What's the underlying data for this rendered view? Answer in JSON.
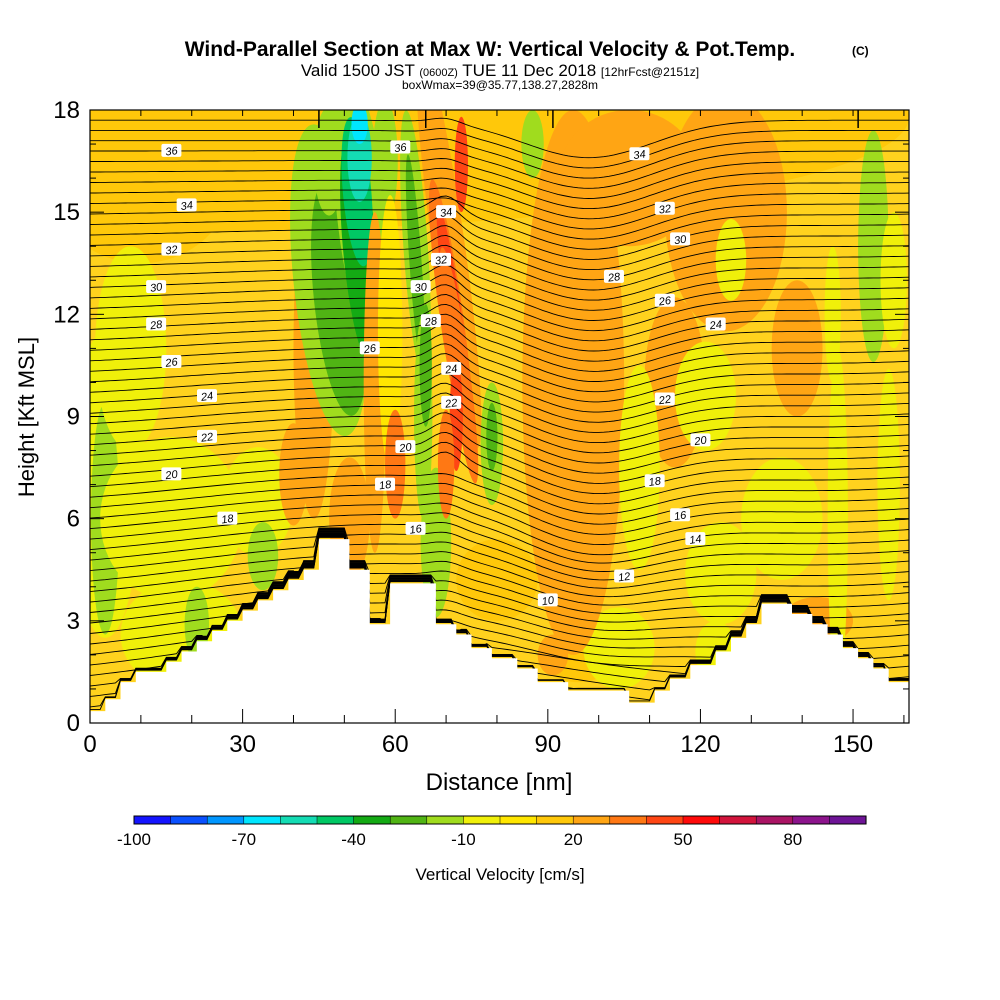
{
  "chart_data": {
    "type": "contour",
    "title": "Wind-Parallel Section at Max W: Vertical Velocity & Pot.Temp.",
    "title_mark": "(C)",
    "subtitle": {
      "valid": "Valid 1500 JST",
      "utc": "(0600Z)",
      "date": "TUE 11 Dec 2018",
      "forecast": "[12hrFcst@2151z]"
    },
    "subtitle2": "boxWmax=39@35.77,138.27,2828m",
    "xlabel": "Distance [nm]",
    "ylabel": "Height [Kft MSL]",
    "xlim": [
      0,
      161
    ],
    "ylim": [
      0,
      18
    ],
    "xticks": [
      0,
      30,
      60,
      90,
      120,
      150
    ],
    "yticks": [
      0,
      3,
      6,
      9,
      12,
      15,
      18
    ],
    "colorbar": {
      "label": "Vertical Velocity [cm/s]",
      "ticks": [
        -100,
        -70,
        -40,
        -10,
        20,
        50,
        80
      ],
      "levels": [
        -100,
        -90,
        -80,
        -70,
        -60,
        -50,
        -40,
        -30,
        -20,
        -10,
        0,
        10,
        20,
        30,
        40,
        50,
        60,
        70,
        80,
        90
      ],
      "colors": [
        "#1414ff",
        "#0a50ff",
        "#0096ff",
        "#00e6ff",
        "#14dcb4",
        "#00c864",
        "#14aa14",
        "#50b414",
        "#a0dc1e",
        "#f0f00a",
        "#ffe600",
        "#ffc80a",
        "#ffa514",
        "#ff7814",
        "#ff4614",
        "#ff0a0a",
        "#d2143c",
        "#aa1464",
        "#8c148c",
        "#6e1496"
      ]
    },
    "terrain": [
      [
        0,
        0.35
      ],
      [
        3,
        0.35
      ],
      [
        3,
        0.7
      ],
      [
        6,
        0.7
      ],
      [
        6,
        1.2
      ],
      [
        9,
        1.2
      ],
      [
        9,
        1.5
      ],
      [
        15,
        1.5
      ],
      [
        15,
        1.8
      ],
      [
        18,
        1.8
      ],
      [
        18,
        2.1
      ],
      [
        21,
        2.1
      ],
      [
        21,
        2.4
      ],
      [
        24,
        2.4
      ],
      [
        24,
        2.7
      ],
      [
        27,
        2.7
      ],
      [
        27,
        3.0
      ],
      [
        30,
        3.0
      ],
      [
        30,
        3.3
      ],
      [
        33,
        3.3
      ],
      [
        33,
        3.6
      ],
      [
        36,
        3.6
      ],
      [
        36,
        3.9
      ],
      [
        39,
        3.9
      ],
      [
        39,
        4.2
      ],
      [
        42,
        4.2
      ],
      [
        42,
        4.5
      ],
      [
        45,
        4.5
      ],
      [
        45,
        5.4
      ],
      [
        51,
        5.4
      ],
      [
        51,
        4.5
      ],
      [
        55,
        4.5
      ],
      [
        55,
        2.9
      ],
      [
        59,
        2.9
      ],
      [
        59,
        4.1
      ],
      [
        68,
        4.1
      ],
      [
        68,
        2.9
      ],
      [
        72,
        2.9
      ],
      [
        72,
        2.6
      ],
      [
        75,
        2.6
      ],
      [
        75,
        2.2
      ],
      [
        79,
        2.2
      ],
      [
        79,
        1.9
      ],
      [
        84,
        1.9
      ],
      [
        84,
        1.6
      ],
      [
        88,
        1.6
      ],
      [
        88,
        1.2
      ],
      [
        94,
        1.2
      ],
      [
        94,
        0.95
      ],
      [
        100,
        0.95
      ],
      [
        100,
        0.95
      ],
      [
        106,
        0.95
      ],
      [
        106,
        0.6
      ],
      [
        111,
        0.6
      ],
      [
        111,
        0.95
      ],
      [
        114,
        0.95
      ],
      [
        114,
        1.3
      ],
      [
        118,
        1.3
      ],
      [
        118,
        1.7
      ],
      [
        123,
        1.7
      ],
      [
        123,
        2.1
      ],
      [
        126,
        2.1
      ],
      [
        126,
        2.5
      ],
      [
        129,
        2.5
      ],
      [
        129,
        2.9
      ],
      [
        132,
        2.9
      ],
      [
        132,
        3.5
      ],
      [
        138,
        3.5
      ],
      [
        138,
        3.2
      ],
      [
        142,
        3.2
      ],
      [
        142,
        2.9
      ],
      [
        145,
        2.9
      ],
      [
        145,
        2.6
      ],
      [
        148,
        2.6
      ],
      [
        148,
        2.2
      ],
      [
        151,
        2.2
      ],
      [
        151,
        1.9
      ],
      [
        154,
        1.9
      ],
      [
        154,
        1.6
      ],
      [
        157,
        1.6
      ],
      [
        157,
        1.2
      ],
      [
        161,
        1.2
      ]
    ],
    "isentrope_labels": [
      {
        "text": "36",
        "x": 16,
        "y": 16.8
      },
      {
        "text": "34",
        "x": 19,
        "y": 15.2
      },
      {
        "text": "32",
        "x": 16,
        "y": 13.9
      },
      {
        "text": "30",
        "x": 13,
        "y": 12.8
      },
      {
        "text": "28",
        "x": 13,
        "y": 11.7
      },
      {
        "text": "26",
        "x": 16,
        "y": 10.6
      },
      {
        "text": "24",
        "x": 23,
        "y": 9.6
      },
      {
        "text": "22",
        "x": 23,
        "y": 8.4
      },
      {
        "text": "20",
        "x": 16,
        "y": 7.3
      },
      {
        "text": "18",
        "x": 27,
        "y": 6.0
      },
      {
        "text": "36",
        "x": 61,
        "y": 16.9
      },
      {
        "text": "34",
        "x": 70,
        "y": 15.0
      },
      {
        "text": "32",
        "x": 69,
        "y": 13.6
      },
      {
        "text": "30",
        "x": 65,
        "y": 12.8
      },
      {
        "text": "28",
        "x": 67,
        "y": 11.8
      },
      {
        "text": "26",
        "x": 55,
        "y": 11.0
      },
      {
        "text": "24",
        "x": 71,
        "y": 10.4
      },
      {
        "text": "22",
        "x": 71,
        "y": 9.4
      },
      {
        "text": "20",
        "x": 62,
        "y": 8.1
      },
      {
        "text": "18",
        "x": 58,
        "y": 7.0
      },
      {
        "text": "16",
        "x": 64,
        "y": 5.7
      },
      {
        "text": "10",
        "x": 90,
        "y": 3.6
      },
      {
        "text": "12",
        "x": 105,
        "y": 4.3
      },
      {
        "text": "14",
        "x": 119,
        "y": 5.4
      },
      {
        "text": "16",
        "x": 116,
        "y": 6.1
      },
      {
        "text": "18",
        "x": 111,
        "y": 7.1
      },
      {
        "text": "20",
        "x": 120,
        "y": 8.3
      },
      {
        "text": "22",
        "x": 113,
        "y": 9.5
      },
      {
        "text": "24",
        "x": 123,
        "y": 11.7
      },
      {
        "text": "26",
        "x": 113,
        "y": 12.4
      },
      {
        "text": "28",
        "x": 103,
        "y": 13.1
      },
      {
        "text": "30",
        "x": 116,
        "y": 14.2
      },
      {
        "text": "32",
        "x": 113,
        "y": 15.1
      },
      {
        "text": "34",
        "x": 108,
        "y": 16.7
      }
    ]
  }
}
